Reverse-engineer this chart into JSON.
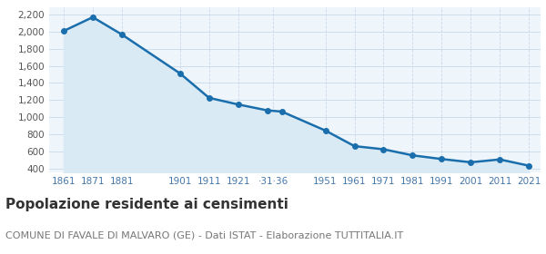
{
  "years": [
    1861,
    1871,
    1881,
    1901,
    1911,
    1921,
    1931,
    1936,
    1951,
    1961,
    1971,
    1981,
    1991,
    2001,
    2011,
    2021
  ],
  "population": [
    2007,
    2168,
    1966,
    1511,
    1225,
    1148,
    1079,
    1065,
    843,
    661,
    624,
    553,
    510,
    472,
    505,
    432
  ],
  "line_color": "#1a6eac",
  "fill_color": "#daeaf5",
  "marker_size": 4,
  "line_width": 1.8,
  "ylim": [
    350,
    2280
  ],
  "yticks": [
    400,
    600,
    800,
    1000,
    1200,
    1400,
    1600,
    1800,
    2000,
    2200
  ],
  "background_color": "#eef5fb",
  "grid_color": "#c8d8e8",
  "title": "Popolazione residente ai censimenti",
  "subtitle": "COMUNE DI FAVALE DI MALVARO (GE) - Dati ISTAT - Elaborazione TUTTITALIA.IT",
  "title_fontsize": 11,
  "subtitle_fontsize": 8,
  "tick_label_color": "#4477aa",
  "tick_fontsize": 7.5,
  "ytick_fontsize": 7.5,
  "x_tick_positions": [
    1861,
    1871,
    1881,
    1901,
    1911,
    1921,
    1933,
    1951,
    1961,
    1971,
    1981,
    1991,
    2001,
    2011,
    2021
  ],
  "x_tick_labels": [
    "1861",
    "1871",
    "1881",
    "1901",
    "1911",
    "1921",
    "‧31‧36",
    "1951",
    "1961",
    "1971",
    "1981",
    "1991",
    "2001",
    "2011",
    "2021"
  ],
  "xlim": [
    1856,
    2025
  ]
}
